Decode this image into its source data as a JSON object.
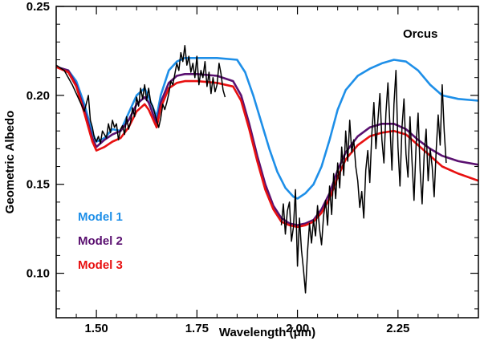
{
  "chart_data": {
    "type": "line",
    "title": "",
    "xlabel": "Wavelength (μm)",
    "ylabel": "Geometric Albedo",
    "xlim": [
      1.4,
      2.45
    ],
    "ylim": [
      0.075,
      0.25
    ],
    "xticks": [
      1.5,
      1.75,
      2.0,
      2.25
    ],
    "xtick_labels": [
      "1.50",
      "1.75",
      "2.00",
      "2.25"
    ],
    "yticks": [
      0.1,
      0.15,
      0.2,
      0.25
    ],
    "ytick_labels": [
      "0.10",
      "0.15",
      "0.20",
      "0.25"
    ],
    "grid": false,
    "annotations": [
      {
        "text": "Orcus",
        "color": "#000000"
      },
      {
        "text": "Model 1",
        "color": "#1e8fe8"
      },
      {
        "text": "Model 2",
        "color": "#5a1070"
      },
      {
        "text": "Model 3",
        "color": "#e81010"
      }
    ],
    "series": [
      {
        "name": "Model 1",
        "color": "#1e8fe8",
        "x": [
          1.4,
          1.43,
          1.45,
          1.47,
          1.49,
          1.5,
          1.52,
          1.54,
          1.56,
          1.58,
          1.6,
          1.62,
          1.63,
          1.65,
          1.66,
          1.68,
          1.7,
          1.72,
          1.75,
          1.8,
          1.85,
          1.87,
          1.89,
          1.91,
          1.93,
          1.95,
          1.97,
          1.99,
          2.0,
          2.02,
          2.04,
          2.06,
          2.08,
          2.1,
          2.12,
          2.15,
          2.18,
          2.21,
          2.24,
          2.27,
          2.3,
          2.33,
          2.36,
          2.4,
          2.45
        ],
        "y": [
          0.216,
          0.214,
          0.208,
          0.195,
          0.179,
          0.174,
          0.176,
          0.181,
          0.18,
          0.19,
          0.2,
          0.204,
          0.199,
          0.188,
          0.2,
          0.214,
          0.219,
          0.221,
          0.221,
          0.221,
          0.22,
          0.213,
          0.2,
          0.185,
          0.17,
          0.157,
          0.148,
          0.143,
          0.142,
          0.145,
          0.15,
          0.16,
          0.175,
          0.192,
          0.203,
          0.211,
          0.215,
          0.218,
          0.22,
          0.219,
          0.214,
          0.206,
          0.2,
          0.198,
          0.197
        ]
      },
      {
        "name": "Model 2",
        "color": "#5a1070",
        "x": [
          1.4,
          1.43,
          1.45,
          1.47,
          1.49,
          1.5,
          1.52,
          1.54,
          1.56,
          1.58,
          1.6,
          1.62,
          1.63,
          1.65,
          1.66,
          1.68,
          1.7,
          1.72,
          1.75,
          1.8,
          1.84,
          1.86,
          1.88,
          1.9,
          1.92,
          1.94,
          1.96,
          1.98,
          2.0,
          2.02,
          2.04,
          2.06,
          2.08,
          2.1,
          2.12,
          2.15,
          2.18,
          2.21,
          2.24,
          2.27,
          2.3,
          2.33,
          2.36,
          2.4,
          2.45
        ],
        "y": [
          0.216,
          0.214,
          0.206,
          0.192,
          0.176,
          0.171,
          0.175,
          0.178,
          0.18,
          0.186,
          0.195,
          0.199,
          0.196,
          0.184,
          0.196,
          0.207,
          0.211,
          0.212,
          0.212,
          0.211,
          0.208,
          0.2,
          0.184,
          0.166,
          0.15,
          0.138,
          0.131,
          0.128,
          0.127,
          0.128,
          0.13,
          0.136,
          0.145,
          0.158,
          0.168,
          0.177,
          0.182,
          0.184,
          0.184,
          0.181,
          0.175,
          0.17,
          0.166,
          0.163,
          0.161
        ]
      },
      {
        "name": "Model 3",
        "color": "#e81010",
        "x": [
          1.4,
          1.43,
          1.45,
          1.47,
          1.49,
          1.5,
          1.52,
          1.54,
          1.56,
          1.58,
          1.6,
          1.62,
          1.63,
          1.65,
          1.66,
          1.68,
          1.7,
          1.72,
          1.75,
          1.8,
          1.84,
          1.86,
          1.88,
          1.9,
          1.92,
          1.94,
          1.96,
          1.98,
          2.0,
          2.02,
          2.04,
          2.06,
          2.08,
          2.1,
          2.12,
          2.15,
          2.18,
          2.21,
          2.24,
          2.27,
          2.3,
          2.33,
          2.36,
          2.4,
          2.45
        ],
        "y": [
          0.216,
          0.213,
          0.205,
          0.19,
          0.174,
          0.169,
          0.171,
          0.174,
          0.176,
          0.182,
          0.191,
          0.195,
          0.192,
          0.182,
          0.193,
          0.204,
          0.207,
          0.208,
          0.208,
          0.207,
          0.205,
          0.197,
          0.181,
          0.163,
          0.147,
          0.136,
          0.129,
          0.127,
          0.126,
          0.127,
          0.129,
          0.134,
          0.142,
          0.154,
          0.164,
          0.172,
          0.177,
          0.179,
          0.18,
          0.178,
          0.172,
          0.166,
          0.16,
          0.156,
          0.152
        ]
      },
      {
        "name": "Orcus",
        "color": "#000000",
        "segments": [
          {
            "x": [
              1.4,
              1.42,
              1.44,
              1.46,
              1.47,
              1.48,
              1.485,
              1.49,
              1.495,
              1.5,
              1.505,
              1.51,
              1.515,
              1.52,
              1.525,
              1.53,
              1.535,
              1.54,
              1.545,
              1.55,
              1.555,
              1.56,
              1.565,
              1.57,
              1.575,
              1.58,
              1.585,
              1.59,
              1.595,
              1.6,
              1.605,
              1.61,
              1.615,
              1.62,
              1.625,
              1.63,
              1.635,
              1.64,
              1.645,
              1.65,
              1.655,
              1.66,
              1.665,
              1.67,
              1.675,
              1.68,
              1.685,
              1.69,
              1.695,
              1.7,
              1.705,
              1.71,
              1.715,
              1.72,
              1.725,
              1.73,
              1.735,
              1.74,
              1.745,
              1.75,
              1.755,
              1.76,
              1.765,
              1.77,
              1.775,
              1.78,
              1.785,
              1.79,
              1.795,
              1.8,
              1.805,
              1.81,
              1.815,
              1.82
            ],
            "y": [
              0.217,
              0.214,
              0.206,
              0.196,
              0.191,
              0.2,
              0.186,
              0.182,
              0.176,
              0.174,
              0.177,
              0.173,
              0.18,
              0.178,
              0.176,
              0.184,
              0.179,
              0.186,
              0.182,
              0.184,
              0.175,
              0.181,
              0.183,
              0.178,
              0.188,
              0.181,
              0.185,
              0.193,
              0.188,
              0.199,
              0.194,
              0.204,
              0.198,
              0.206,
              0.197,
              0.204,
              0.196,
              0.194,
              0.19,
              0.186,
              0.182,
              0.187,
              0.195,
              0.192,
              0.196,
              0.201,
              0.208,
              0.206,
              0.212,
              0.218,
              0.214,
              0.224,
              0.219,
              0.228,
              0.217,
              0.222,
              0.213,
              0.218,
              0.21,
              0.222,
              0.206,
              0.214,
              0.21,
              0.219,
              0.205,
              0.213,
              0.201,
              0.21,
              0.202,
              0.206,
              0.218,
              0.212,
              0.203,
              0.199
            ]
          },
          {
            "x": [
              1.96,
              1.965,
              1.97,
              1.975,
              1.98,
              1.985,
              1.99,
              1.995,
              2.0,
              2.005,
              2.01,
              2.015,
              2.02,
              2.025,
              2.03,
              2.035,
              2.04,
              2.045,
              2.05,
              2.055,
              2.06,
              2.065,
              2.07,
              2.075,
              2.08,
              2.085,
              2.09,
              2.095,
              2.1,
              2.105,
              2.11,
              2.115,
              2.12,
              2.125,
              2.13,
              2.135,
              2.14,
              2.145,
              2.15,
              2.155,
              2.16,
              2.165,
              2.17,
              2.175,
              2.18,
              2.185,
              2.19,
              2.195,
              2.2,
              2.205,
              2.21,
              2.215,
              2.22,
              2.225,
              2.23,
              2.235,
              2.24,
              2.245,
              2.25,
              2.255,
              2.26,
              2.265,
              2.27,
              2.275,
              2.28,
              2.285,
              2.29,
              2.295,
              2.3,
              2.305,
              2.31,
              2.315,
              2.32,
              2.325,
              2.33,
              2.335,
              2.34,
              2.345,
              2.35,
              2.355,
              2.36,
              2.365,
              2.37
            ],
            "y": [
              0.127,
              0.139,
              0.122,
              0.135,
              0.14,
              0.118,
              0.126,
              0.147,
              0.104,
              0.131,
              0.113,
              0.102,
              0.089,
              0.112,
              0.128,
              0.117,
              0.13,
              0.121,
              0.138,
              0.125,
              0.116,
              0.132,
              0.141,
              0.127,
              0.149,
              0.133,
              0.156,
              0.142,
              0.162,
              0.148,
              0.171,
              0.155,
              0.18,
              0.163,
              0.186,
              0.168,
              0.175,
              0.16,
              0.152,
              0.137,
              0.146,
              0.131,
              0.158,
              0.169,
              0.151,
              0.178,
              0.196,
              0.17,
              0.186,
              0.201,
              0.175,
              0.162,
              0.19,
              0.207,
              0.183,
              0.158,
              0.195,
              0.214,
              0.171,
              0.149,
              0.182,
              0.198,
              0.167,
              0.154,
              0.188,
              0.163,
              0.141,
              0.172,
              0.19,
              0.158,
              0.139,
              0.166,
              0.181,
              0.152,
              0.17,
              0.16,
              0.143,
              0.169,
              0.189,
              0.172,
              0.206,
              0.18,
              0.162
            ]
          }
        ]
      }
    ]
  }
}
